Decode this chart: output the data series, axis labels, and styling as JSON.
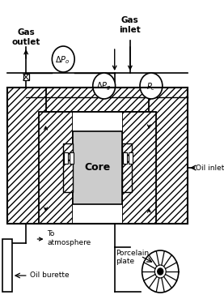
{
  "fig_width": 2.77,
  "fig_height": 3.64,
  "bg_color": "#ffffff",
  "labels": {
    "gas_outlet": "Gas\noutlet",
    "gas_inlet": "Gas\ninlet",
    "oil_inlet": "Oil inlet",
    "to_atmosphere": "To\natmosphere",
    "oil_burette": "Oil burette",
    "porcelain_plate": "Porcelain\nplate",
    "core": "Core"
  }
}
